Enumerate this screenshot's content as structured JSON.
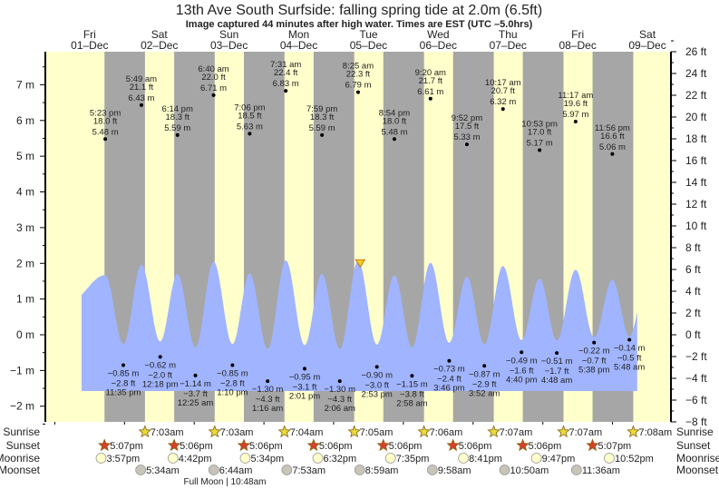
{
  "chart_data": {
    "type": "area",
    "title": "13th Ave South Surfside: falling  spring tide at 2.0m (6.5ft)",
    "subtitle": "Image captured 44 minutes after high water. Times are EST (UTC –5.0hrs)",
    "left_axis": {
      "unit": "m",
      "ticks": [
        "7 m",
        "6 m",
        "5 m",
        "4 m",
        "3 m",
        "2 m",
        "1 m",
        "0 m",
        "−1 m",
        "−2 m"
      ],
      "tick_values": [
        7,
        6,
        5,
        4,
        3,
        2,
        1,
        0,
        -1,
        -2
      ]
    },
    "right_axis": {
      "unit": "ft",
      "ylim": [
        -8,
        26
      ],
      "ticks": [
        "26 ft",
        "24 ft",
        "22 ft",
        "20 ft",
        "18 ft",
        "16 ft",
        "14 ft",
        "12 ft",
        "10 ft",
        "8 ft",
        "6 ft",
        "4 ft",
        "2 ft",
        "0 ft",
        "−2 ft",
        "−4 ft",
        "−6 ft",
        "−8 ft"
      ],
      "tick_values": [
        26,
        24,
        22,
        20,
        18,
        16,
        14,
        12,
        10,
        8,
        6,
        4,
        2,
        0,
        -2,
        -4,
        -6,
        -8
      ]
    },
    "days": [
      {
        "dow": "Fri",
        "date": "01–Dec"
      },
      {
        "dow": "Sat",
        "date": "02–Dec"
      },
      {
        "dow": "Sun",
        "date": "03–Dec"
      },
      {
        "dow": "Mon",
        "date": "04–Dec"
      },
      {
        "dow": "Tue",
        "date": "05–Dec"
      },
      {
        "dow": "Wed",
        "date": "06–Dec"
      },
      {
        "dow": "Thu",
        "date": "07–Dec"
      },
      {
        "dow": "Fri",
        "date": "08–Dec"
      },
      {
        "dow": "Sat",
        "date": "09–Dec"
      }
    ],
    "tides": [
      {
        "day": 1,
        "type": "high",
        "time": "5:23 pm",
        "ft": "18.0 ft",
        "m": "5.48 m"
      },
      {
        "day": 1,
        "type": "low",
        "time": "11:35 pm",
        "ft": "−2.8 ft",
        "m": "−0.85 m"
      },
      {
        "day": 2,
        "type": "high",
        "time": "5:49 am",
        "ft": "21.1 ft",
        "m": "6.43 m"
      },
      {
        "day": 2,
        "type": "low",
        "time": "12:18 pm",
        "ft": "−2.0 ft",
        "m": "−0.62 m"
      },
      {
        "day": 2,
        "type": "high",
        "time": "6:14 pm",
        "ft": "18.3 ft",
        "m": "5.59 m"
      },
      {
        "day": 3,
        "type": "low",
        "time": "12:25 am",
        "ft": "−3.7 ft",
        "m": "−1.14 m"
      },
      {
        "day": 3,
        "type": "high",
        "time": "6:40 am",
        "ft": "22.0 ft",
        "m": "6.71 m"
      },
      {
        "day": 3,
        "type": "low",
        "time": "1:10 pm",
        "ft": "−2.8 ft",
        "m": "−0.85 m"
      },
      {
        "day": 3,
        "type": "high",
        "time": "7:06 pm",
        "ft": "18.5 ft",
        "m": "5.63 m"
      },
      {
        "day": 4,
        "type": "low",
        "time": "1:16 am",
        "ft": "−4.3 ft",
        "m": "−1.30 m"
      },
      {
        "day": 4,
        "type": "high",
        "time": "7:31 am",
        "ft": "22.4 ft",
        "m": "6.83 m"
      },
      {
        "day": 4,
        "type": "low",
        "time": "2:01 pm",
        "ft": "−3.1 ft",
        "m": "−0.95 m"
      },
      {
        "day": 4,
        "type": "high",
        "time": "7:59 pm",
        "ft": "18.3 ft",
        "m": "5.59 m"
      },
      {
        "day": 5,
        "type": "low",
        "time": "2:06 am",
        "ft": "−4.3 ft",
        "m": "−1.30 m"
      },
      {
        "day": 5,
        "type": "high",
        "time": "8:25 am",
        "ft": "22.3 ft",
        "m": "6.79 m"
      },
      {
        "day": 5,
        "type": "low",
        "time": "2:53 pm",
        "ft": "−3.0 ft",
        "m": "−0.90 m"
      },
      {
        "day": 5,
        "type": "high",
        "time": "8:54 pm",
        "ft": "18.0 ft",
        "m": "5.48 m"
      },
      {
        "day": 6,
        "type": "low",
        "time": "2:58 am",
        "ft": "−3.8 ft",
        "m": "−1.15 m"
      },
      {
        "day": 6,
        "type": "high",
        "time": "9:20 am",
        "ft": "21.7 ft",
        "m": "6.61 m"
      },
      {
        "day": 6,
        "type": "low",
        "time": "3:46 pm",
        "ft": "−2.4 ft",
        "m": "−0.73 m"
      },
      {
        "day": 6,
        "type": "high",
        "time": "9:52 pm",
        "ft": "17.5 ft",
        "m": "5.33 m"
      },
      {
        "day": 7,
        "type": "low",
        "time": "3:52 am",
        "ft": "−2.9 ft",
        "m": "−0.87 m"
      },
      {
        "day": 7,
        "type": "high",
        "time": "10:17 am",
        "ft": "20.7 ft",
        "m": "6.32 m"
      },
      {
        "day": 7,
        "type": "low",
        "time": "4:40 pm",
        "ft": "−1.6 ft",
        "m": "−0.49 m"
      },
      {
        "day": 7,
        "type": "high",
        "time": "10:53 pm",
        "ft": "17.0 ft",
        "m": "5.17 m"
      },
      {
        "day": 8,
        "type": "low",
        "time": "4:48 am",
        "ft": "−1.7 ft",
        "m": "−0.51 m"
      },
      {
        "day": 8,
        "type": "high",
        "time": "11:17 am",
        "ft": "19.6 ft",
        "m": "5.97 m"
      },
      {
        "day": 8,
        "type": "low",
        "time": "5:38 pm",
        "ft": "−0.7 ft",
        "m": "−0.22 m"
      },
      {
        "day": 8,
        "type": "high",
        "time": "11:56 pm",
        "ft": "16.6 ft",
        "m": "5.06 m"
      },
      {
        "day": 9,
        "type": "low",
        "time": "5:48 am",
        "ft": "−0.5 ft",
        "m": "−0.14 m"
      }
    ],
    "current": {
      "day": 5,
      "time": "9:09 am",
      "level_m": 2.0
    },
    "rows": {
      "sunrise": "Sunrise",
      "sunset": "Sunset",
      "moonrise": "Moonrise",
      "moonset": "Moonset"
    },
    "sunrise": [
      {
        "day": 2,
        "time": "7:03am"
      },
      {
        "day": 3,
        "time": "7:03am"
      },
      {
        "day": 4,
        "time": "7:04am"
      },
      {
        "day": 5,
        "time": "7:05am"
      },
      {
        "day": 6,
        "time": "7:06am"
      },
      {
        "day": 7,
        "time": "7:07am"
      },
      {
        "day": 8,
        "time": "7:07am"
      },
      {
        "day": 9,
        "time": "7:08am"
      }
    ],
    "sunset": [
      {
        "day": 1,
        "time": "5:07pm"
      },
      {
        "day": 2,
        "time": "5:06pm"
      },
      {
        "day": 3,
        "time": "5:06pm"
      },
      {
        "day": 4,
        "time": "5:06pm"
      },
      {
        "day": 5,
        "time": "5:06pm"
      },
      {
        "day": 6,
        "time": "5:06pm"
      },
      {
        "day": 7,
        "time": "5:06pm"
      },
      {
        "day": 8,
        "time": "5:07pm"
      }
    ],
    "moonrise": [
      {
        "day": 1,
        "time": "3:57pm"
      },
      {
        "day": 2,
        "time": "4:42pm"
      },
      {
        "day": 3,
        "time": "5:34pm"
      },
      {
        "day": 4,
        "time": "6:32pm"
      },
      {
        "day": 5,
        "time": "7:35pm"
      },
      {
        "day": 6,
        "time": "8:41pm"
      },
      {
        "day": 7,
        "time": "9:47pm"
      },
      {
        "day": 8,
        "time": "10:52pm"
      }
    ],
    "moonset": [
      {
        "day": 2,
        "time": "5:34am"
      },
      {
        "day": 3,
        "time": "6:44am"
      },
      {
        "day": 4,
        "time": "7:53am"
      },
      {
        "day": 5,
        "time": "8:59am"
      },
      {
        "day": 6,
        "time": "9:58am"
      },
      {
        "day": 7,
        "time": "10:50am"
      },
      {
        "day": 8,
        "time": "11:36am"
      }
    ],
    "moon_phase": "Full Moon | 10:48am",
    "colors": {
      "day": "#ffffcc",
      "night": "#a6a6a6",
      "water": "#a0b4ff",
      "day_label": "#ff2020",
      "sunrise_star": "#e8dc3c",
      "sunset_star": "#d8402a",
      "moonrise": "#ffffcc",
      "moonset": "#c8c4b8"
    }
  }
}
